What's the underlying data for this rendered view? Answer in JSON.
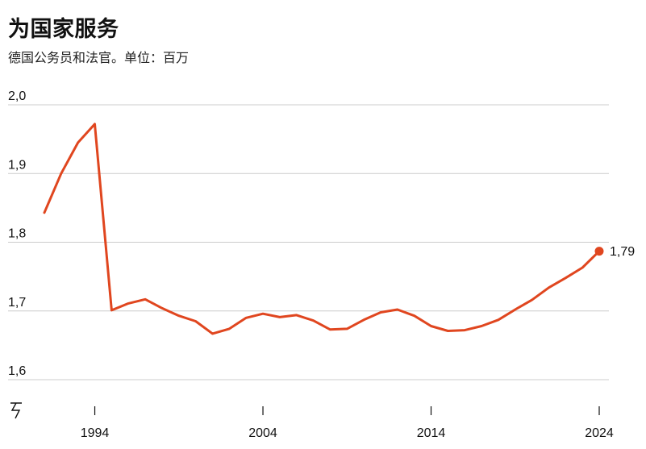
{
  "title": "为国家服务",
  "subtitle": "德国公务员和法官。单位：百万",
  "colors": {
    "line": "#e0461f",
    "grid": "#cccccc",
    "axis": "#555555"
  },
  "chart_data": {
    "type": "line",
    "title": "为国家服务",
    "subtitle": "德国公务员和法官。单位：百万",
    "xlabel": "",
    "ylabel": "",
    "ylim": [
      1.6,
      2.0
    ],
    "xlim": [
      1991,
      2024
    ],
    "y_ticks": [
      {
        "value": 2.0,
        "label": "2,0"
      },
      {
        "value": 1.9,
        "label": "1,9"
      },
      {
        "value": 1.8,
        "label": "1,8"
      },
      {
        "value": 1.7,
        "label": "1,7"
      },
      {
        "value": 1.6,
        "label": "1,6"
      }
    ],
    "x_ticks": [
      {
        "value": 1994,
        "label": "1994"
      },
      {
        "value": 2004,
        "label": "2004"
      },
      {
        "value": 2014,
        "label": "2014"
      },
      {
        "value": 2024,
        "label": "2024"
      }
    ],
    "grid": true,
    "axis_break": true,
    "series": [
      {
        "x": [
          1991,
          1992,
          1993,
          1994,
          1995,
          1996,
          1997,
          1998,
          1999,
          2000,
          2001,
          2002,
          2003,
          2004,
          2005,
          2006,
          2007,
          2008,
          2009,
          2010,
          2011,
          2012,
          2013,
          2014,
          2015,
          2016,
          2017,
          2018,
          2019,
          2020,
          2021,
          2022,
          2023,
          2024
        ],
        "values": [
          1.843,
          1.9,
          1.945,
          1.972,
          1.701,
          1.711,
          1.717,
          1.704,
          1.693,
          1.685,
          1.667,
          1.674,
          1.69,
          1.696,
          1.691,
          1.694,
          1.686,
          1.673,
          1.674,
          1.687,
          1.698,
          1.702,
          1.693,
          1.678,
          1.671,
          1.672,
          1.678,
          1.687,
          1.702,
          1.716,
          1.734,
          1.748,
          1.763,
          1.787
        ]
      }
    ],
    "end_label": "1,79"
  }
}
